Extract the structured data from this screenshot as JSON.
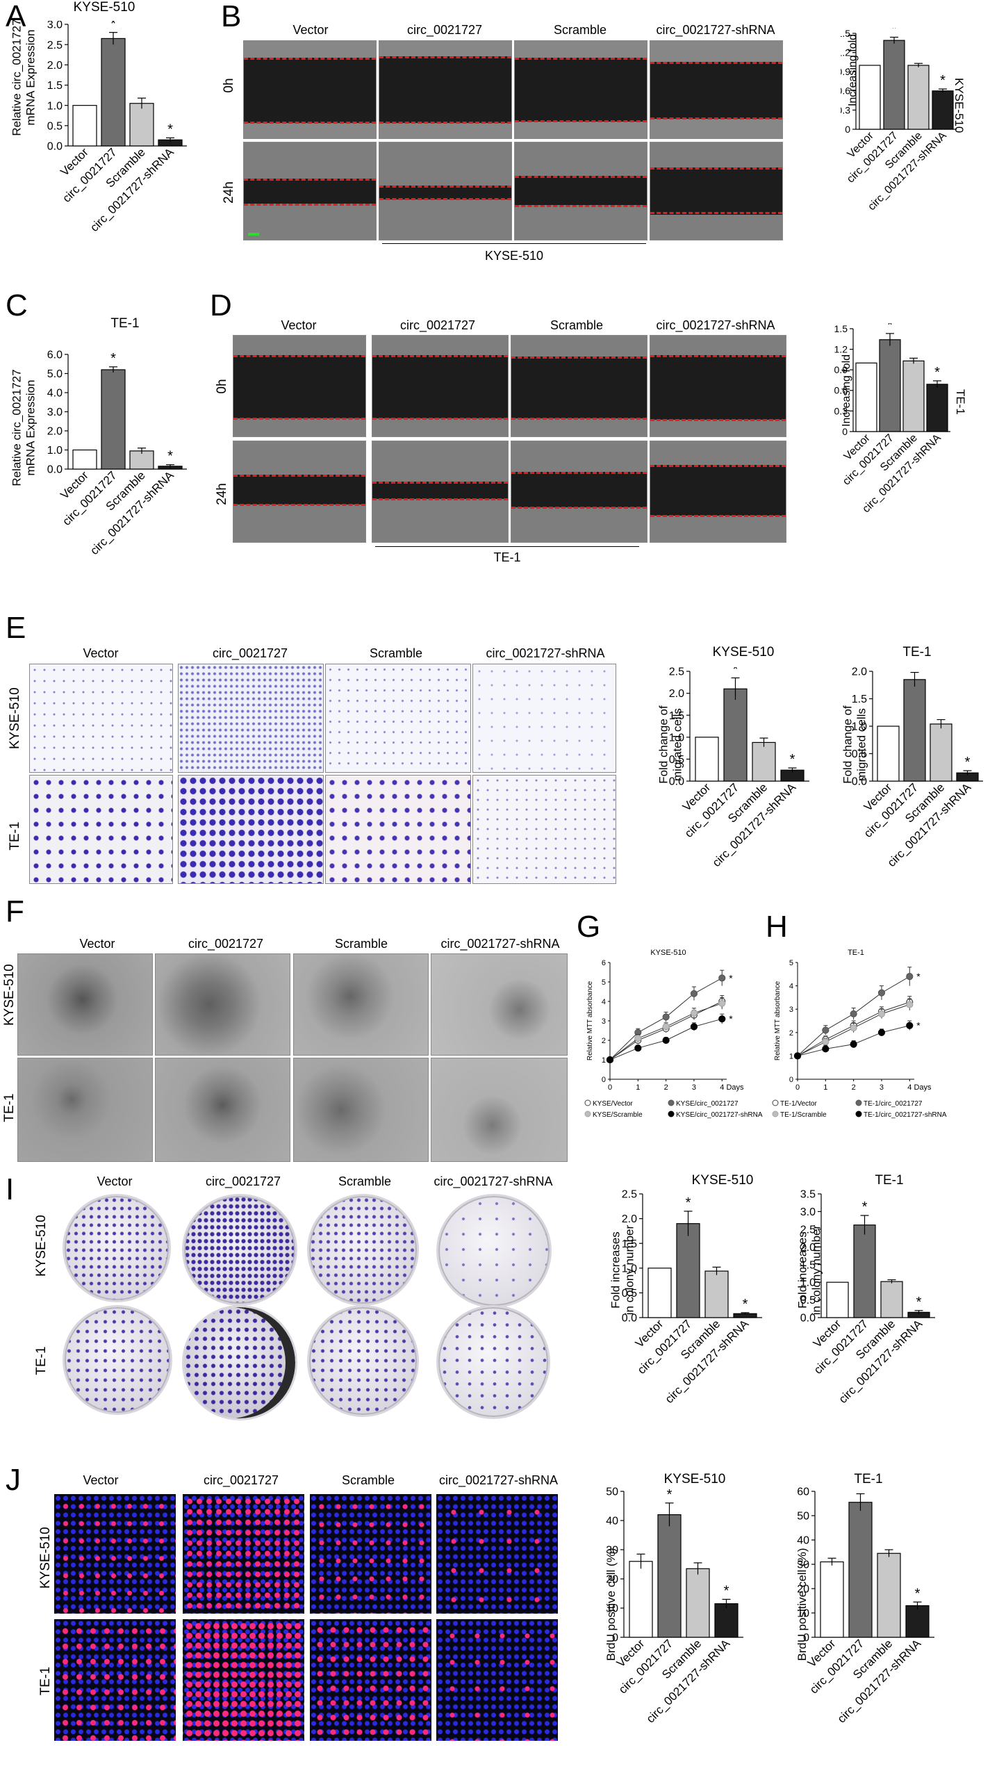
{
  "panels": {
    "A": {
      "label": "A",
      "title": "KYSE-510",
      "ylabel_line1": "Relative circ_0021727",
      "ylabel_line2": "mRNA Expression"
    },
    "B": {
      "label": "B",
      "columns": [
        "Vector",
        "circ_0021727",
        "Scramble",
        "circ_0021727-shRNA"
      ],
      "rows": [
        "0h",
        "24h"
      ],
      "cell_line": "KYSE-510",
      "side_label": "KYSE-510",
      "ylabel": "Increasing fold"
    },
    "C": {
      "label": "C",
      "title": "TE-1",
      "ylabel_line1": "Relative circ_0021727",
      "ylabel_line2": "mRNA Expression"
    },
    "D": {
      "label": "D",
      "columns": [
        "Vector",
        "circ_0021727",
        "Scramble",
        "circ_0021727-shRNA"
      ],
      "rows": [
        "0h",
        "24h"
      ],
      "cell_line": "TE-1",
      "side_label": "TE-1",
      "ylabel": "Increasing fold"
    },
    "E": {
      "label": "E",
      "columns": [
        "Vector",
        "circ_0021727",
        "Scramble",
        "circ_0021727-shRNA"
      ],
      "rows": [
        "KYSE-510",
        "TE-1"
      ],
      "ylabel_line1": "Fold change of",
      "ylabel_line2": "migrated cells",
      "chart_titles": [
        "KYSE-510",
        "TE-1"
      ]
    },
    "F": {
      "label": "F",
      "columns": [
        "Vector",
        "circ_0021727",
        "Scramble",
        "circ_0021727-shRNA"
      ],
      "rows": [
        "KYSE-510",
        "TE-1"
      ]
    },
    "G": {
      "label": "G",
      "title": "KYSE-510",
      "ylabel": "Relative MTT absorbance",
      "xlabel": "Days",
      "legend": [
        "KYSE/Vector",
        "KYSE/circ_0021727",
        "KYSE/Scramble",
        "KYSE/circ_0021727-shRNA"
      ]
    },
    "H": {
      "label": "H",
      "title": "TE-1",
      "ylabel": "Relative MTT absorbance",
      "xlabel": "Days",
      "legend": [
        "TE-1/Vector",
        "TE-1/circ_0021727",
        "TE-1/Scramble",
        "TE-1/circ_0021727-shRNA"
      ]
    },
    "I": {
      "label": "I",
      "columns": [
        "Vector",
        "circ_0021727",
        "Scramble",
        "circ_0021727-shRNA"
      ],
      "rows": [
        "KYSE-510",
        "TE-1"
      ],
      "ylabel_line1": "Fold increases",
      "ylabel_line2": "in colony number",
      "chart_titles": [
        "KYSE-510",
        "TE-1"
      ]
    },
    "J": {
      "label": "J",
      "columns": [
        "Vector",
        "circ_0021727",
        "Scramble",
        "circ_0021727-shRNA"
      ],
      "rows": [
        "KYSE-510",
        "TE-1"
      ],
      "ylabel": "BrdU positive cell (%)",
      "chart_titles": [
        "KYSE-510",
        "TE-1"
      ]
    }
  },
  "colors": {
    "vector": "#ffffff",
    "circ": "#6e6e6e",
    "scramble": "#c8c8c8",
    "shrna": "#1e1e1e",
    "wound_line": "#e02020",
    "crystal_violet": "#5a46b4",
    "brdu_nuclei": "#2a2ae0",
    "brdu_positive": "#ff2a7a"
  },
  "chart_data": [
    {
      "id": "A",
      "type": "bar",
      "categories": [
        "Vector",
        "circ_0021727",
        "Scramble",
        "circ_0021727-shRNA"
      ],
      "values": [
        1.0,
        2.65,
        1.05,
        0.15
      ],
      "errors": [
        0,
        0.15,
        0.13,
        0.05
      ],
      "significant": [
        false,
        true,
        false,
        true
      ],
      "ylim": [
        0,
        3.0
      ],
      "yticks": [
        "0.0",
        "0.5",
        "1.0",
        "1.5",
        "2.0",
        "2.5",
        "3.0"
      ],
      "title": "KYSE-510"
    },
    {
      "id": "B",
      "type": "bar",
      "categories": [
        "Vector",
        "circ_0021727",
        "Scramble",
        "circ_0021727-shRNA"
      ],
      "values": [
        1.0,
        1.39,
        1.0,
        0.6
      ],
      "errors": [
        0,
        0.05,
        0.03,
        0.03
      ],
      "significant": [
        false,
        true,
        false,
        true
      ],
      "ylim": [
        0,
        1.5
      ],
      "yticks": [
        "0",
        "0.3",
        "0.6",
        "0.9",
        "1.2",
        "1.5"
      ]
    },
    {
      "id": "C",
      "type": "bar",
      "categories": [
        "Vector",
        "circ_0021727",
        "Scramble",
        "circ_0021727-shRNA"
      ],
      "values": [
        1.0,
        5.2,
        0.95,
        0.15
      ],
      "errors": [
        0,
        0.15,
        0.15,
        0.08
      ],
      "significant": [
        false,
        true,
        false,
        true
      ],
      "ylim": [
        0,
        6.0
      ],
      "yticks": [
        "0.0",
        "1.0",
        "2.0",
        "3.0",
        "4.0",
        "5.0",
        "6.0"
      ],
      "title": "TE-1"
    },
    {
      "id": "D",
      "type": "bar",
      "categories": [
        "Vector",
        "circ_0021727",
        "Scramble",
        "circ_0021727-shRNA"
      ],
      "values": [
        1.0,
        1.34,
        1.03,
        0.69
      ],
      "errors": [
        0,
        0.09,
        0.04,
        0.05
      ],
      "significant": [
        false,
        true,
        false,
        true
      ],
      "ylim": [
        0,
        1.5
      ],
      "yticks": [
        "0",
        "0.3",
        "0.6",
        "0.9",
        "1.2",
        "1.5"
      ]
    },
    {
      "id": "E1",
      "type": "bar",
      "categories": [
        "Vector",
        "circ_0021727",
        "Scramble",
        "circ_0021727-shRNA"
      ],
      "values": [
        1.0,
        2.1,
        0.88,
        0.25
      ],
      "errors": [
        0,
        0.25,
        0.1,
        0.05
      ],
      "significant": [
        false,
        true,
        false,
        true
      ],
      "ylim": [
        0,
        2.5
      ],
      "yticks": [
        "0.0",
        "0.5",
        "1.0",
        "1.5",
        "2.0",
        "2.5"
      ],
      "title": "KYSE-510"
    },
    {
      "id": "E2",
      "type": "bar",
      "categories": [
        "Vector",
        "circ_0021727",
        "Scramble",
        "circ_0021727-shRNA"
      ],
      "values": [
        1.0,
        1.85,
        1.04,
        0.15
      ],
      "errors": [
        0,
        0.13,
        0.08,
        0.04
      ],
      "significant": [
        false,
        true,
        false,
        true
      ],
      "ylim": [
        0,
        2.0
      ],
      "yticks": [
        "0.0",
        "0.5",
        "1.0",
        "1.5",
        "2.0"
      ],
      "title": "TE-1"
    },
    {
      "id": "G",
      "type": "line",
      "x": [
        0,
        1,
        2,
        3,
        4
      ],
      "xticks": [
        "0",
        "1",
        "2",
        "3",
        "4"
      ],
      "ylim": [
        0,
        6
      ],
      "yticks": [
        "0",
        "1",
        "2",
        "3",
        "4",
        "5",
        "6"
      ],
      "title": "KYSE-510",
      "series": [
        {
          "name": "KYSE/Vector",
          "values": [
            1,
            2.0,
            2.6,
            3.3,
            4.0
          ],
          "errors": [
            0.05,
            0.2,
            0.2,
            0.25,
            0.3
          ],
          "marker": "open"
        },
        {
          "name": "KYSE/circ_0021727",
          "values": [
            1,
            2.4,
            3.2,
            4.4,
            5.2
          ],
          "errors": [
            0.05,
            0.2,
            0.25,
            0.35,
            0.4
          ],
          "marker": "dark-gray"
        },
        {
          "name": "KYSE/Scramble",
          "values": [
            1,
            2.1,
            2.7,
            3.4,
            3.9
          ],
          "errors": [
            0.05,
            0.2,
            0.2,
            0.25,
            0.3
          ],
          "marker": "light-gray"
        },
        {
          "name": "KYSE/circ_0021727-shRNA",
          "values": [
            1,
            1.6,
            2.0,
            2.7,
            3.1
          ],
          "errors": [
            0.05,
            0.15,
            0.15,
            0.2,
            0.25
          ],
          "marker": "black"
        }
      ],
      "significant_series": [
        "KYSE/circ_0021727",
        "KYSE/circ_0021727-shRNA"
      ]
    },
    {
      "id": "H",
      "type": "line",
      "x": [
        0,
        1,
        2,
        3,
        4
      ],
      "xticks": [
        "0",
        "1",
        "2",
        "3",
        "4"
      ],
      "ylim": [
        0,
        5
      ],
      "yticks": [
        "0",
        "1",
        "2",
        "3",
        "4",
        "5"
      ],
      "title": "TE-1",
      "series": [
        {
          "name": "TE-1/Vector",
          "values": [
            1,
            1.7,
            2.3,
            2.9,
            3.3
          ],
          "errors": [
            0.05,
            0.15,
            0.2,
            0.2,
            0.25
          ],
          "marker": "open"
        },
        {
          "name": "TE-1/circ_0021727",
          "values": [
            1,
            2.1,
            2.8,
            3.7,
            4.4
          ],
          "errors": [
            0.05,
            0.2,
            0.25,
            0.3,
            0.4
          ],
          "marker": "dark-gray"
        },
        {
          "name": "TE-1/Scramble",
          "values": [
            1,
            1.6,
            2.2,
            2.8,
            3.2
          ],
          "errors": [
            0.05,
            0.15,
            0.2,
            0.2,
            0.25
          ],
          "marker": "light-gray"
        },
        {
          "name": "TE-1/circ_0021727-shRNA",
          "values": [
            1,
            1.3,
            1.5,
            2.0,
            2.3
          ],
          "errors": [
            0.05,
            0.15,
            0.15,
            0.15,
            0.2
          ],
          "marker": "black"
        }
      ],
      "significant_series": [
        "TE-1/circ_0021727",
        "TE-1/circ_0021727-shRNA"
      ]
    },
    {
      "id": "I1",
      "type": "bar",
      "categories": [
        "Vector",
        "circ_0021727",
        "Scramble",
        "circ_0021727-shRNA"
      ],
      "values": [
        1.0,
        1.9,
        0.94,
        0.08
      ],
      "errors": [
        0,
        0.25,
        0.08,
        0.02
      ],
      "significant": [
        false,
        true,
        false,
        true
      ],
      "ylim": [
        0,
        2.5
      ],
      "yticks": [
        "0.0",
        "0.5",
        "1.0",
        "1.5",
        "2.0",
        "2.5"
      ],
      "title": "KYSE-510"
    },
    {
      "id": "I2",
      "type": "bar",
      "categories": [
        "Vector",
        "circ_0021727",
        "Scramble",
        "circ_0021727-shRNA"
      ],
      "values": [
        1.0,
        2.62,
        1.02,
        0.15
      ],
      "errors": [
        0,
        0.27,
        0.05,
        0.05
      ],
      "significant": [
        false,
        true,
        false,
        true
      ],
      "ylim": [
        0,
        3.5
      ],
      "yticks": [
        "0.0",
        "0.5",
        "1.0",
        "1.5",
        "2.0",
        "2.5",
        "3.0",
        "3.5"
      ],
      "title": "TE-1"
    },
    {
      "id": "J1",
      "type": "bar",
      "categories": [
        "Vector",
        "circ_0021727",
        "Scramble",
        "circ_0021727-shRNA"
      ],
      "values": [
        26,
        42,
        23.5,
        11.5
      ],
      "errors": [
        2.5,
        4,
        2,
        1.5
      ],
      "significant": [
        false,
        true,
        false,
        true
      ],
      "ylim": [
        0,
        50
      ],
      "yticks": [
        "0",
        "10",
        "20",
        "30",
        "40",
        "50"
      ],
      "title": "KYSE-510"
    },
    {
      "id": "J2",
      "type": "bar",
      "categories": [
        "Vector",
        "circ_0021727",
        "Scramble",
        "circ_0021727-shRNA"
      ],
      "values": [
        31,
        55.5,
        34.5,
        13
      ],
      "errors": [
        1.5,
        3.5,
        1.5,
        1.5
      ],
      "significant": [
        false,
        true,
        false,
        true
      ],
      "ylim": [
        0,
        60
      ],
      "yticks": [
        "0",
        "10",
        "20",
        "30",
        "40",
        "50",
        "60"
      ],
      "title": "TE-1"
    }
  ]
}
